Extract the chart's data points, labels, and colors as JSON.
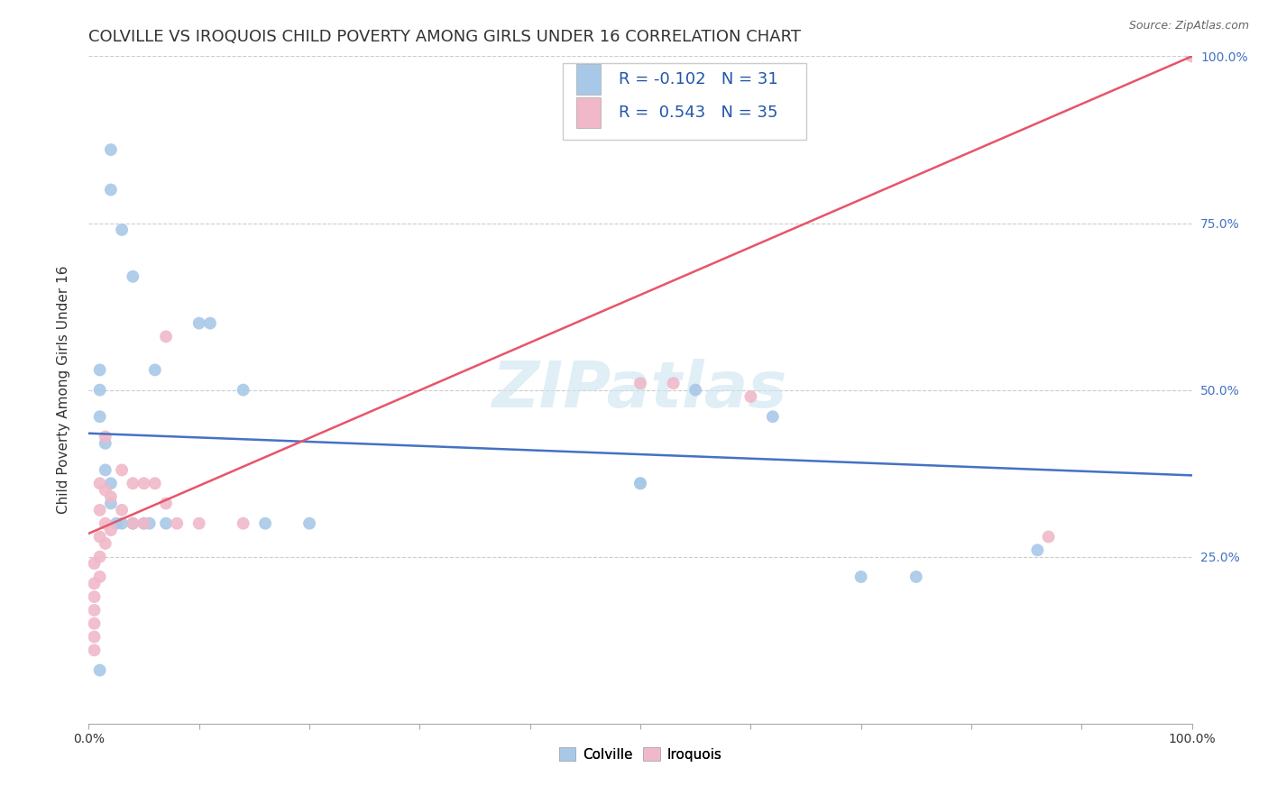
{
  "title": "COLVILLE VS IROQUOIS CHILD POVERTY AMONG GIRLS UNDER 16 CORRELATION CHART",
  "source": "Source: ZipAtlas.com",
  "ylabel": "Child Poverty Among Girls Under 16",
  "watermark": "ZIPatlas",
  "colville_R": -0.102,
  "colville_N": 31,
  "iroquois_R": 0.543,
  "iroquois_N": 35,
  "colville_color": "#a8c8e8",
  "iroquois_color": "#f0b8c8",
  "colville_line_color": "#4472C4",
  "iroquois_line_color": "#E8546A",
  "colville_x": [
    0.01,
    0.02,
    0.02,
    0.03,
    0.04,
    0.01,
    0.01,
    0.01,
    0.015,
    0.015,
    0.02,
    0.02,
    0.025,
    0.03,
    0.04,
    0.05,
    0.055,
    0.06,
    0.07,
    0.1,
    0.11,
    0.14,
    0.16,
    0.2,
    0.5,
    0.5,
    0.55,
    0.62,
    0.7,
    0.75,
    0.86
  ],
  "colville_y": [
    0.08,
    0.86,
    0.8,
    0.74,
    0.67,
    0.53,
    0.5,
    0.46,
    0.42,
    0.38,
    0.36,
    0.33,
    0.3,
    0.3,
    0.3,
    0.3,
    0.3,
    0.53,
    0.3,
    0.6,
    0.6,
    0.5,
    0.3,
    0.3,
    0.36,
    0.36,
    0.5,
    0.46,
    0.22,
    0.22,
    0.26
  ],
  "iroquois_x": [
    0.005,
    0.005,
    0.005,
    0.005,
    0.005,
    0.005,
    0.005,
    0.01,
    0.01,
    0.01,
    0.01,
    0.01,
    0.015,
    0.015,
    0.015,
    0.015,
    0.02,
    0.02,
    0.03,
    0.03,
    0.04,
    0.04,
    0.05,
    0.05,
    0.06,
    0.07,
    0.07,
    0.08,
    0.1,
    0.14,
    0.5,
    0.53,
    0.6,
    0.87,
    1.0
  ],
  "iroquois_y": [
    0.24,
    0.21,
    0.19,
    0.17,
    0.15,
    0.13,
    0.11,
    0.36,
    0.32,
    0.28,
    0.25,
    0.22,
    0.43,
    0.35,
    0.3,
    0.27,
    0.34,
    0.29,
    0.38,
    0.32,
    0.36,
    0.3,
    0.36,
    0.3,
    0.36,
    0.58,
    0.33,
    0.3,
    0.3,
    0.3,
    0.51,
    0.51,
    0.49,
    0.28,
    1.0
  ],
  "colville_line": [
    0.0,
    1.0,
    0.435,
    0.372
  ],
  "iroquois_line": [
    0.0,
    1.0,
    0.285,
    1.0
  ],
  "xlim": [
    0.0,
    1.0
  ],
  "ylim": [
    0.0,
    1.0
  ],
  "xticks": [
    0.0,
    0.1,
    0.2,
    0.3,
    0.4,
    0.5,
    0.6,
    0.7,
    0.8,
    0.9,
    1.0
  ],
  "xticklabels_show": {
    "0.0": "0.0%",
    "1.0": "100.0%"
  },
  "yticks_right": [
    0.25,
    0.5,
    0.75,
    1.0
  ],
  "yticklabels_right": [
    "25.0%",
    "50.0%",
    "75.0%",
    "100.0%"
  ],
  "grid_yticks": [
    0.25,
    0.5,
    0.75,
    1.0
  ],
  "grid_color": "#cccccc",
  "background_color": "#ffffff",
  "marker_size": 100,
  "title_fontsize": 13,
  "axis_label_fontsize": 11,
  "tick_fontsize": 10,
  "legend_fontsize": 13
}
